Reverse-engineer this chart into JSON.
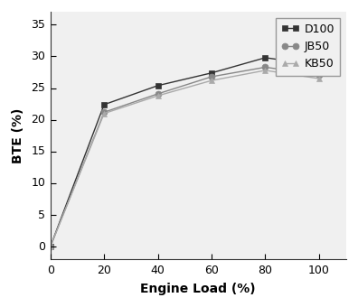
{
  "x": [
    0,
    20,
    40,
    60,
    80,
    100
  ],
  "D100": [
    0,
    22.4,
    25.4,
    27.4,
    29.8,
    28.6
  ],
  "JB50": [
    0,
    21.2,
    24.1,
    26.8,
    28.3,
    27.1
  ],
  "KB50": [
    0,
    21.0,
    23.8,
    26.2,
    27.8,
    26.5
  ],
  "D100_color": "#333333",
  "JB50_color": "#888888",
  "KB50_color": "#aaaaaa",
  "D100_marker": "s",
  "JB50_marker": "o",
  "KB50_marker": "^",
  "D100_label": "D100",
  "JB50_label": "JB50",
  "KB50_label": "KB50",
  "xlabel": "Engine Load (%)",
  "ylabel": "BTE (%)",
  "xlim": [
    0,
    110
  ],
  "ylim": [
    -2,
    37
  ],
  "xticks": [
    0,
    20,
    40,
    60,
    80,
    100
  ],
  "yticks": [
    0,
    5,
    10,
    15,
    20,
    25,
    30,
    35
  ],
  "linewidth": 1.0,
  "markersize": 5,
  "bg_color": "#f0f0f0",
  "figsize": [
    3.96,
    3.4
  ],
  "dpi": 100,
  "tick_fontsize": 9,
  "label_fontsize": 10,
  "legend_fontsize": 9
}
